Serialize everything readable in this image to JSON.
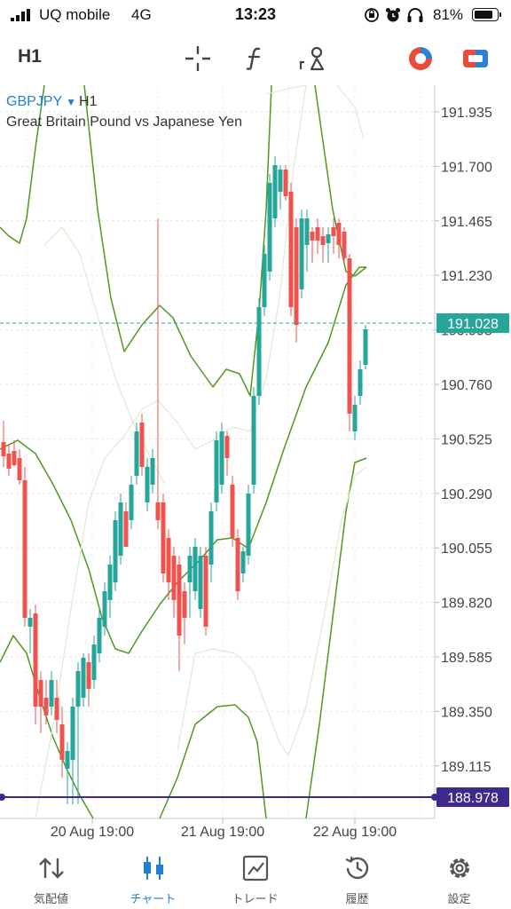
{
  "status": {
    "carrier": "UQ mobile",
    "network": "4G",
    "time": "13:23",
    "battery_pct": "81%"
  },
  "toolbar": {
    "timeframe": "H1"
  },
  "chart": {
    "symbol": "GBPJPY",
    "timeframe": "H1",
    "description": "Great Britain Pound vs Japanese Yen",
    "current_price": "191.028",
    "line_price": "188.978",
    "accent_bid": "#26a69a",
    "line_color": "#3d2a8c",
    "bull_color": "#26a69a",
    "bear_color": "#ef5350"
  },
  "chart_data": {
    "type": "candlestick",
    "y_ticks": [
      "191.935",
      "191.700",
      "191.465",
      "191.230",
      "190.995",
      "190.760",
      "190.525",
      "190.290",
      "190.055",
      "189.820",
      "189.585",
      "189.350",
      "189.115"
    ],
    "ylim": [
      189.0,
      192.0
    ],
    "x_ticks": [
      "20 Aug 19:00",
      "21 Aug 19:00",
      "22 Aug 19:00"
    ],
    "indicators": [
      "Bollinger Bands (outer)",
      "Bollinger Bands (inner)",
      "Envelope"
    ]
  },
  "tabs": [
    {
      "label": "気配値",
      "icon": "quotes-icon"
    },
    {
      "label": "チャート",
      "icon": "chart-candles-icon"
    },
    {
      "label": "トレード",
      "icon": "trade-icon"
    },
    {
      "label": "履歴",
      "icon": "history-icon"
    },
    {
      "label": "設定",
      "icon": "settings-icon"
    }
  ]
}
